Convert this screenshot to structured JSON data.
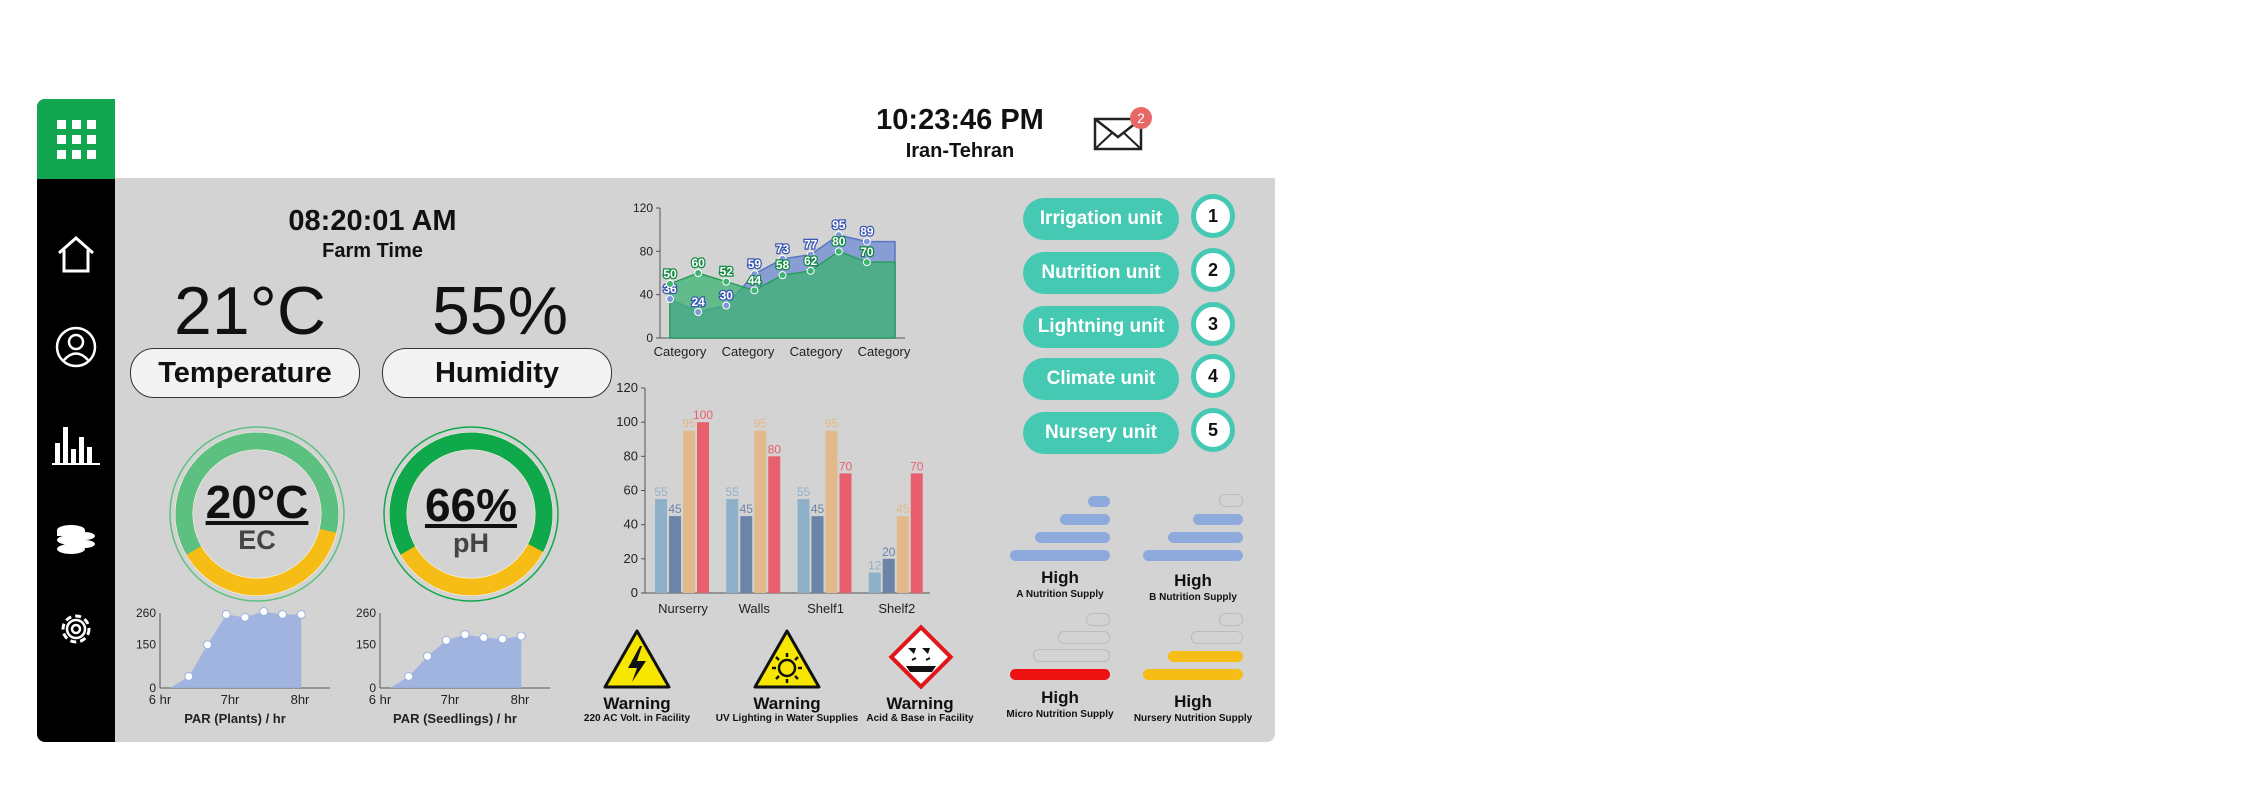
{
  "header": {
    "clock": "10:23:46 PM",
    "city": "Iran-Tehran",
    "mail_badge": "2"
  },
  "sidebar": {
    "items": [
      {
        "icon": "home-icon"
      },
      {
        "icon": "user-icon"
      },
      {
        "icon": "bar-chart-icon"
      },
      {
        "icon": "database-icon"
      },
      {
        "icon": "gear-icon"
      }
    ]
  },
  "farm": {
    "time": "08:20:01 AM",
    "time_label": "Farm Time",
    "temperature_value": "21°C",
    "temperature_label": "Temperature",
    "humidity_value": "55%",
    "humidity_label": "Humidity"
  },
  "gauges": {
    "ec": {
      "value": "20°C",
      "label": "EC",
      "fill": 0.62,
      "color_top": "#5cc081",
      "color_bottom": "#f5bd16"
    },
    "ph": {
      "value": "66%",
      "label": "pH",
      "fill": 0.66,
      "color_top": "#0fa84a",
      "color_bottom": "#f5bd16"
    }
  },
  "units": [
    {
      "label": "Irrigation unit",
      "num": "1"
    },
    {
      "label": "Nutrition unit",
      "num": "2"
    },
    {
      "label": "Lightning unit",
      "num": "3"
    },
    {
      "label": "Climate unit",
      "num": "4"
    },
    {
      "label": "Nursery unit",
      "num": "5"
    }
  ],
  "supplies": [
    {
      "level": "High",
      "label": "A Nutrition Supply",
      "color": "#8eaadc",
      "filled": 4
    },
    {
      "level": "High",
      "label": "B Nutrition Supply",
      "color": "#8eaadc",
      "filled": 3
    },
    {
      "level": "High",
      "label": "Micro Nutrition Supply",
      "color": "#ee1111",
      "filled": 1
    },
    {
      "level": "High",
      "label": "Nursery Nutrition Supply",
      "color": "#f5bd16",
      "filled": 2
    }
  ],
  "warnings": [
    {
      "title": "Warning",
      "label": "220 AC Volt. in Facility",
      "icon": "high-voltage-icon"
    },
    {
      "title": "Warning",
      "label": "UV Lighting in Water Supplies",
      "icon": "uv-radiation-icon"
    },
    {
      "title": "Warning",
      "label": "Acid & Base in Facility",
      "icon": "corrosive-icon"
    }
  ],
  "chart_data": [
    {
      "type": "area",
      "categories": [
        "Category",
        "Category",
        "Category",
        "Category"
      ],
      "x": [
        1,
        2,
        3,
        4,
        5,
        6,
        7,
        8,
        9
      ],
      "series": [
        {
          "values": [
            36,
            24,
            30,
            59,
            73,
            77,
            95,
            89,
            89
          ],
          "color": "#7f97d4"
        },
        {
          "values": [
            50,
            60,
            52,
            44,
            58,
            62,
            80,
            70,
            70
          ],
          "color": "#3cb371"
        }
      ],
      "point_labels": [
        [
          "36",
          "24",
          "30",
          "59",
          "73",
          "77",
          "95",
          "89"
        ],
        [
          "50",
          "60",
          "52",
          "44",
          "58",
          "62",
          "80",
          "70"
        ]
      ],
      "ylim": [
        0,
        120
      ],
      "yticks": [
        "0",
        "40",
        "80",
        "120"
      ]
    },
    {
      "type": "bar",
      "categories": [
        "Nurserry",
        "Walls",
        "Shelf1",
        "Shelf2"
      ],
      "series": [
        {
          "values": [
            55,
            55,
            55,
            12
          ],
          "color": "#8fb0c9"
        },
        {
          "values": [
            45,
            45,
            45,
            20
          ],
          "color": "#6c84a8"
        },
        {
          "values": [
            95,
            95,
            95,
            45
          ],
          "color": "#e2b98a"
        },
        {
          "values": [
            100,
            80,
            70,
            70
          ],
          "color": "#e8606d"
        }
      ],
      "ylim": [
        0,
        120
      ],
      "yticks": [
        "0",
        "20",
        "40",
        "60",
        "80",
        "100",
        "120"
      ]
    },
    {
      "type": "area",
      "x": [
        0,
        1,
        2,
        3,
        4,
        5,
        6,
        7,
        8
      ],
      "series": [
        {
          "values": [
            0,
            40,
            150,
            255,
            245,
            265,
            255,
            255,
            0
          ]
        }
      ],
      "xticks": [
        "6 hr",
        "7hr",
        "8hr"
      ],
      "yticks": [
        "0",
        "150",
        "260"
      ],
      "ylim": [
        0,
        260
      ],
      "xlabel": "PAR (Plants) / hr"
    },
    {
      "type": "area",
      "x": [
        0,
        1,
        2,
        3,
        4,
        5,
        6,
        7,
        8
      ],
      "series": [
        {
          "values": [
            0,
            40,
            110,
            165,
            185,
            175,
            170,
            180,
            0
          ]
        }
      ],
      "xticks": [
        "6 hr",
        "7hr",
        "8hr"
      ],
      "yticks": [
        "0",
        "150",
        "260"
      ],
      "ylim": [
        0,
        260
      ],
      "xlabel": "PAR (Seedlings) / hr"
    }
  ]
}
